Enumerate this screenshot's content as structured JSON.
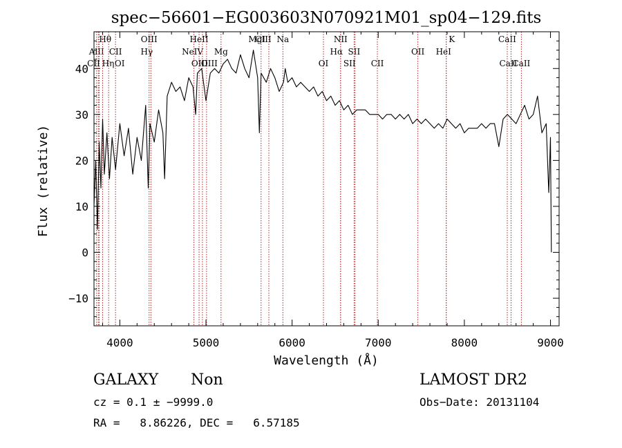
{
  "chart_data": {
    "type": "line",
    "title": "spec−56601−EG003603N070921M01_sp04−129.fits",
    "xlabel": "Wavelength (Å)",
    "ylabel": "Flux (relative)",
    "xlim": [
      3700,
      9100
    ],
    "ylim": [
      -16,
      48
    ],
    "xticks": [
      {
        "v": 4000,
        "label": "4000"
      },
      {
        "v": 5000,
        "label": "5000"
      },
      {
        "v": 6000,
        "label": "6000"
      },
      {
        "v": 7000,
        "label": "7000"
      },
      {
        "v": 8000,
        "label": "8000"
      },
      {
        "v": 9000,
        "label": "9000"
      }
    ],
    "yticks": [
      {
        "v": -10,
        "label": "−10"
      },
      {
        "v": 0,
        "label": "0"
      },
      {
        "v": 10,
        "label": "10"
      },
      {
        "v": 20,
        "label": "20"
      },
      {
        "v": 30,
        "label": "30"
      },
      {
        "v": 40,
        "label": "40"
      }
    ],
    "series": [
      {
        "x": [
          3700,
          3720,
          3740,
          3760,
          3780,
          3800,
          3820,
          3850,
          3880,
          3910,
          3950,
          4000,
          4050,
          4100,
          4150,
          4200,
          4250,
          4300,
          4330,
          4350,
          4400,
          4450,
          4500,
          4520,
          4550,
          4600,
          4650,
          4700,
          4750,
          4800,
          4850,
          4880,
          4900,
          4950,
          5000,
          5050,
          5100,
          5150,
          5200,
          5250,
          5300,
          5350,
          5400,
          5450,
          5500,
          5550,
          5600,
          5620,
          5640,
          5700,
          5750,
          5800,
          5850,
          5900,
          5920,
          5950,
          6000,
          6050,
          6100,
          6150,
          6200,
          6250,
          6300,
          6350,
          6400,
          6450,
          6500,
          6550,
          6600,
          6650,
          6700,
          6750,
          6800,
          6850,
          6900,
          6950,
          7000,
          7050,
          7100,
          7150,
          7200,
          7250,
          7300,
          7350,
          7400,
          7450,
          7500,
          7550,
          7600,
          7650,
          7700,
          7750,
          7800,
          7850,
          7900,
          7950,
          8000,
          8050,
          8100,
          8150,
          8200,
          8250,
          8300,
          8350,
          8400,
          8450,
          8500,
          8550,
          8600,
          8650,
          8700,
          8750,
          8800,
          8850,
          8900,
          8950,
          8980,
          9000,
          9010
        ],
        "y": [
          10,
          20,
          5,
          24,
          14,
          29,
          17,
          26,
          16,
          25,
          18,
          28,
          21,
          27,
          17,
          25,
          20,
          32,
          14,
          28,
          24,
          31,
          26,
          16,
          34,
          37,
          35,
          36,
          33,
          38,
          36,
          30,
          39,
          40,
          33,
          39,
          40,
          39,
          41,
          42,
          40,
          39,
          43,
          40,
          38,
          44,
          38,
          26,
          39,
          37,
          40,
          38,
          35,
          37,
          40,
          37,
          38,
          36,
          37,
          36,
          35,
          36,
          34,
          35,
          33,
          34,
          32,
          33,
          31,
          32,
          30,
          31,
          31,
          31,
          30,
          30,
          30,
          29,
          30,
          30,
          29,
          30,
          29,
          30,
          28,
          29,
          28,
          29,
          28,
          27,
          28,
          27,
          29,
          28,
          27,
          28,
          26,
          27,
          27,
          27,
          28,
          27,
          28,
          28,
          23,
          29,
          30,
          29,
          28,
          30,
          32,
          29,
          30,
          34,
          26,
          28,
          13,
          25,
          0
        ]
      }
    ],
    "lines": [
      {
        "w": 3730,
        "label": "AlII",
        "row": 1,
        "dx": 0
      },
      {
        "w": 3750,
        "label": "Hθ",
        "row": 0,
        "dx": 10
      },
      {
        "w": 3760,
        "label": "CII",
        "row": 2,
        "dx": -8
      },
      {
        "w": 3800,
        "label": "Hη",
        "row": 2,
        "dx": 8
      },
      {
        "w": 3870,
        "label": "OI",
        "row": 2,
        "dx": 16
      },
      {
        "w": 3950,
        "label": "CII",
        "row": 1,
        "dx": 0
      },
      {
        "w": 4340,
        "label": "OIII",
        "row": 0,
        "dx": 0
      },
      {
        "w": 4361,
        "label": "Hγ",
        "row": 1,
        "dx": -6
      },
      {
        "w": 4860,
        "label": "NeIV",
        "row": 1,
        "dx": -2
      },
      {
        "w": 4920,
        "label": "HeII",
        "row": 0,
        "dx": 0
      },
      {
        "w": 4959,
        "label": "OIII",
        "row": 2,
        "dx": -4
      },
      {
        "w": 5007,
        "label": "OIII",
        "row": 2,
        "dx": 4
      },
      {
        "w": 5175,
        "label": "Mg",
        "row": 1,
        "dx": 0
      },
      {
        "w": 5640,
        "label": "MgI",
        "row": 0,
        "dx": -6
      },
      {
        "w": 5730,
        "label": "CIII",
        "row": 0,
        "dx": -8
      },
      {
        "w": 5893,
        "label": "Na",
        "row": 0,
        "dx": 0
      },
      {
        "w": 6364,
        "label": "OI",
        "row": 2,
        "dx": 0
      },
      {
        "w": 6563,
        "label": "NII",
        "row": 0,
        "dx": 0
      },
      {
        "w": 6563,
        "label": "Hα",
        "row": 1,
        "dx": -6
      },
      {
        "w": 6720,
        "label": "SII",
        "row": 1,
        "dx": 0
      },
      {
        "w": 6731,
        "label": "SII",
        "row": 2,
        "dx": -8
      },
      {
        "w": 6990,
        "label": "CII",
        "row": 2,
        "dx": 0
      },
      {
        "w": 7460,
        "label": "OII",
        "row": 1,
        "dx": 0
      },
      {
        "w": 7790,
        "label": "K",
        "row": 0,
        "dx": 8
      },
      {
        "w": 7790,
        "label": "HeI",
        "row": 1,
        "dx": -4
      },
      {
        "w": 8498,
        "label": "CaII",
        "row": 0,
        "dx": 0
      },
      {
        "w": 8542,
        "label": "CaII",
        "row": 2,
        "dx": -4
      },
      {
        "w": 8662,
        "label": "CaII",
        "row": 2,
        "dx": 0
      }
    ]
  },
  "info": {
    "class": "GALAXY",
    "subclass": "Non",
    "cz": "cz = 0.1 ± −9999.0",
    "radec": "RA =   8.86226, DEC =   6.57185",
    "survey": "LAMOST DR2",
    "obsdate": "Obs−Date: 20131104"
  }
}
